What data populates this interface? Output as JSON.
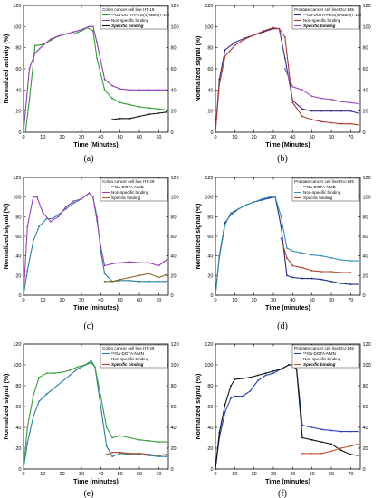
{
  "chart_data": [
    {
      "type": "line",
      "panel_label": "(a)",
      "legend_title": "Colon cancer cell line HT-19",
      "xlabel": "Time (Minutes)",
      "ylabel": "Normalized activity (%)",
      "xlim": [
        0,
        75
      ],
      "ylim": [
        0,
        120
      ],
      "x_ticks": [
        0,
        10,
        20,
        30,
        40,
        50,
        60,
        70
      ],
      "y_ticks": [
        0,
        20,
        40,
        60,
        80,
        100,
        120
      ],
      "right_axis": true,
      "series": [
        {
          "name": "⁶⁸Ga-DOTA-PEG(4)-BBN(7-14)",
          "color": "#2e9e2e",
          "italic": false,
          "x": [
            0,
            1,
            3,
            6,
            10,
            14,
            18,
            22,
            26,
            30,
            33,
            36,
            38,
            42,
            46,
            50,
            55,
            60,
            65,
            70,
            74
          ],
          "y": [
            0,
            0,
            30,
            82,
            83,
            87,
            91,
            93,
            93,
            96,
            99,
            96,
            70,
            40,
            32,
            28,
            26,
            24,
            23,
            22,
            21
          ]
        },
        {
          "name": "Non-specific binding",
          "color": "#8b3cb8",
          "italic": false,
          "x": [
            0,
            3,
            6,
            10,
            14,
            18,
            22,
            26,
            30,
            34,
            36,
            38,
            42,
            46,
            50,
            55,
            60,
            65,
            70,
            74
          ],
          "y": [
            0,
            60,
            75,
            82,
            88,
            91,
            93,
            95,
            97,
            100,
            100,
            85,
            50,
            44,
            41,
            40,
            40,
            40,
            40,
            40
          ]
        },
        {
          "name": "Specific binding",
          "color": "#111111",
          "italic": true,
          "x": [
            46,
            50,
            55,
            60,
            65,
            70,
            74
          ],
          "y": [
            12,
            13,
            13,
            15,
            17,
            18,
            19
          ]
        }
      ]
    },
    {
      "type": "line",
      "panel_label": "(b)",
      "legend_title": "Prostate cancer cell line DU-145",
      "xlabel": "Time (Minutes)",
      "ylabel": "Normalized signal (%)",
      "xlim": [
        0,
        75
      ],
      "ylim": [
        0,
        120
      ],
      "x_ticks": [
        0,
        10,
        20,
        30,
        40,
        50,
        60,
        70
      ],
      "y_ticks": [
        0,
        20,
        40,
        60,
        80,
        100,
        120
      ],
      "right_axis": true,
      "series": [
        {
          "name": "⁶⁸Ga-DOTA-PEG(4)-BBN(7-14)",
          "color": "#3a2a8c",
          "italic": false,
          "x": [
            0,
            2,
            5,
            10,
            15,
            20,
            25,
            28,
            30,
            33,
            36,
            40,
            45,
            50,
            55,
            60,
            65,
            70,
            74
          ],
          "y": [
            0,
            50,
            78,
            85,
            89,
            92,
            95,
            97,
            98,
            98,
            70,
            30,
            22,
            20,
            20,
            20,
            20,
            20,
            18
          ]
        },
        {
          "name": "Non-specific binding",
          "color": "#b03a2e",
          "italic": false,
          "x": [
            0,
            2,
            5,
            10,
            15,
            20,
            25,
            30,
            33,
            36,
            40,
            45,
            50,
            55,
            60,
            65,
            70,
            74
          ],
          "y": [
            0,
            45,
            72,
            82,
            88,
            92,
            96,
            99,
            98,
            90,
            28,
            15,
            12,
            10,
            9,
            8,
            8,
            7
          ]
        },
        {
          "name": "Specific binding",
          "color": "#9a4fb8",
          "italic": true,
          "x": [
            36,
            40,
            45,
            50,
            55,
            60,
            65,
            70,
            74
          ],
          "y": [
            60,
            43,
            40,
            34,
            32,
            31,
            29,
            28,
            27
          ]
        }
      ]
    },
    {
      "type": "line",
      "panel_label": "(c)",
      "legend_title": "Colon cancer cell line HT-29",
      "xlabel": "Time (minutes)",
      "ylabel": "Normalized signal (%)",
      "xlim": [
        0,
        75
      ],
      "ylim": [
        0,
        120
      ],
      "x_ticks": [
        0,
        10,
        20,
        30,
        40,
        50,
        60,
        70
      ],
      "y_ticks": [
        0,
        20,
        40,
        60,
        80,
        100,
        120
      ],
      "right_axis": true,
      "series": [
        {
          "name": "⁶⁸Ga-DOTA-NMB",
          "color": "#2a7fa8",
          "italic": false,
          "x": [
            0,
            2,
            5,
            8,
            12,
            15,
            18,
            22,
            26,
            30,
            34,
            36,
            38,
            40,
            42,
            46,
            50,
            55,
            60,
            65,
            70,
            74
          ],
          "y": [
            0,
            25,
            55,
            70,
            78,
            78,
            82,
            88,
            94,
            98,
            104,
            100,
            80,
            45,
            22,
            14,
            15,
            15,
            14,
            14,
            14,
            14
          ]
        },
        {
          "name": "Non-specific binding",
          "color": "#9b3fbf",
          "italic": false,
          "x": [
            0,
            2,
            5,
            7,
            10,
            14,
            18,
            22,
            26,
            30,
            34,
            36,
            38,
            40,
            42,
            46,
            50,
            55,
            60,
            65,
            70,
            74
          ],
          "y": [
            0,
            70,
            100,
            100,
            84,
            75,
            80,
            90,
            96,
            98,
            104,
            100,
            76,
            50,
            30,
            32,
            33,
            34,
            33,
            33,
            30,
            36
          ]
        },
        {
          "name": "Specific binding",
          "color": "#8a6a2e",
          "italic": false,
          "x": [
            42,
            46,
            50,
            55,
            60,
            65,
            70,
            74
          ],
          "y": [
            14,
            14,
            16,
            18,
            20,
            22,
            18,
            21
          ]
        }
      ]
    },
    {
      "type": "line",
      "panel_label": "(d)",
      "legend_title": "Prostate cancer cell line DU-145",
      "xlabel": "Time (minutes)",
      "ylabel": "Normalized signal (%)",
      "xlim": [
        0,
        75
      ],
      "ylim": [
        0,
        120
      ],
      "x_ticks": [
        0,
        10,
        20,
        30,
        40,
        50,
        60,
        70
      ],
      "y_ticks": [
        0,
        20,
        40,
        60,
        80,
        100,
        120
      ],
      "right_axis": true,
      "series": [
        {
          "name": "⁶⁸Ga-DOTA-NMB",
          "color": "#1f2a8c",
          "italic": false,
          "x": [
            0,
            2,
            5,
            8,
            12,
            16,
            20,
            24,
            28,
            31,
            34,
            37,
            40,
            45,
            50,
            55,
            60,
            65,
            70,
            74
          ],
          "y": [
            0,
            40,
            74,
            82,
            88,
            92,
            95,
            97,
            99,
            100,
            70,
            20,
            18,
            17,
            17,
            16,
            14,
            12,
            11,
            11
          ]
        },
        {
          "name": "Non-specific binding",
          "color": "#3a8fb8",
          "italic": false,
          "x": [
            0,
            2,
            5,
            8,
            12,
            16,
            20,
            24,
            28,
            31,
            34,
            37,
            40,
            45,
            50,
            55,
            60,
            65,
            70,
            74
          ],
          "y": [
            0,
            38,
            72,
            84,
            88,
            92,
            95,
            98,
            100,
            100,
            80,
            48,
            45,
            43,
            41,
            40,
            38,
            36,
            35,
            35
          ]
        },
        {
          "name": "Specific binding",
          "color": "#b0442e",
          "italic": false,
          "x": [
            34,
            37,
            40,
            45,
            50,
            55,
            60,
            65,
            70
          ],
          "y": [
            58,
            38,
            30,
            28,
            25,
            24,
            24,
            23,
            23
          ]
        }
      ]
    },
    {
      "type": "line",
      "panel_label": "(e)",
      "legend_title": "Colon cancer cell line HT-29",
      "xlabel": "Time (minutes)",
      "ylabel": "Normalized signal (%)",
      "xlim": [
        0,
        75
      ],
      "ylim": [
        0,
        120
      ],
      "x_ticks": [
        0,
        10,
        20,
        30,
        40,
        50,
        60,
        70
      ],
      "y_ticks": [
        0,
        20,
        40,
        60,
        80,
        100,
        120
      ],
      "right_axis": true,
      "series": [
        {
          "name": "⁶⁸Ga-DOTA-NMN",
          "color": "#2a7fa8",
          "italic": false,
          "x": [
            0,
            2,
            5,
            8,
            12,
            16,
            20,
            24,
            28,
            32,
            35,
            37,
            40,
            43,
            46,
            50,
            55,
            60,
            65,
            70,
            74
          ],
          "y": [
            0,
            25,
            50,
            65,
            72,
            78,
            84,
            90,
            96,
            100,
            104,
            98,
            60,
            22,
            12,
            15,
            14,
            14,
            13,
            12,
            12
          ]
        },
        {
          "name": "Non-specific binding",
          "color": "#3a9e3a",
          "italic": false,
          "x": [
            0,
            2,
            5,
            8,
            12,
            16,
            20,
            24,
            28,
            32,
            35,
            37,
            40,
            43,
            46,
            50,
            55,
            60,
            65,
            70,
            74
          ],
          "y": [
            0,
            40,
            70,
            88,
            92,
            92,
            93,
            95,
            98,
            100,
            102,
            98,
            70,
            40,
            30,
            32,
            30,
            28,
            27,
            26,
            26
          ]
        },
        {
          "name": "Specific binding",
          "color": "#b0442e",
          "italic": true,
          "x": [
            43,
            46,
            50,
            55,
            60,
            65,
            70,
            74
          ],
          "y": [
            14,
            16,
            16,
            15,
            15,
            14,
            13,
            14
          ]
        }
      ]
    },
    {
      "type": "line",
      "panel_label": "(f)",
      "legend_title": "Prostate cancer cell line DU-145",
      "xlabel": "Time (minutes)",
      "ylabel": "Normalized signal (%)",
      "xlim": [
        0,
        75
      ],
      "ylim": [
        0,
        120
      ],
      "x_ticks": [
        0,
        10,
        20,
        30,
        40,
        50,
        60,
        70
      ],
      "y_ticks": [
        0,
        20,
        40,
        60,
        80,
        100,
        120
      ],
      "right_axis": true,
      "series": [
        {
          "name": "⁶⁸Ga-DOTA-NMN",
          "color": "#2a3fbf",
          "italic": false,
          "x": [
            0,
            2,
            5,
            8,
            10,
            14,
            18,
            22,
            26,
            30,
            34,
            38,
            40,
            42,
            45,
            50,
            55,
            60,
            65,
            70,
            74
          ],
          "y": [
            0,
            30,
            55,
            68,
            70,
            70,
            75,
            85,
            90,
            92,
            96,
            100,
            100,
            96,
            42,
            40,
            38,
            37,
            36,
            36,
            36
          ]
        },
        {
          "name": "Non-specific binding",
          "color": "#111111",
          "italic": false,
          "x": [
            0,
            2,
            5,
            8,
            10,
            14,
            18,
            22,
            26,
            30,
            34,
            38,
            40,
            42,
            45,
            50,
            55,
            60,
            65,
            70,
            74
          ],
          "y": [
            0,
            35,
            62,
            80,
            86,
            87,
            88,
            90,
            92,
            94,
            96,
            100,
            100,
            96,
            30,
            28,
            26,
            24,
            18,
            14,
            13
          ]
        },
        {
          "name": "Specific binding",
          "color": "#c2522e",
          "italic": true,
          "x": [
            45,
            50,
            55,
            60,
            65,
            70,
            74
          ],
          "y": [
            15,
            15,
            15,
            17,
            20,
            22,
            24
          ]
        }
      ]
    }
  ]
}
